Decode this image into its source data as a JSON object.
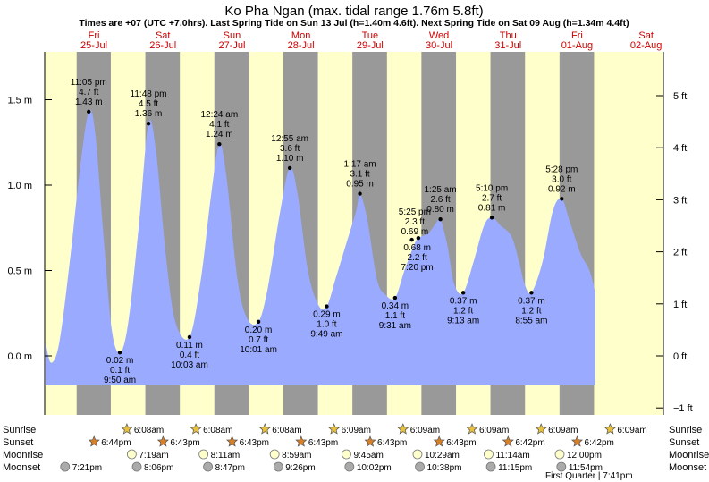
{
  "chart_data": {
    "type": "area",
    "title": "Ko Pha Ngan (max. tidal range 1.76m 5.8ft)",
    "subtitle": "Times are +07 (UTC +7.0hrs). Last Spring Tide on Sun 13 Jul (h=1.40m 4.6ft). Next Spring Tide on Sat 09 Aug (h=1.34m 4.4ft)",
    "days": [
      {
        "dow": "Fri",
        "date": "25-Jul"
      },
      {
        "dow": "Sat",
        "date": "26-Jul"
      },
      {
        "dow": "Sun",
        "date": "27-Jul"
      },
      {
        "dow": "Mon",
        "date": "28-Jul"
      },
      {
        "dow": "Tue",
        "date": "29-Jul"
      },
      {
        "dow": "Wed",
        "date": "30-Jul"
      },
      {
        "dow": "Thu",
        "date": "31-Jul"
      },
      {
        "dow": "Fri",
        "date": "01-Aug"
      },
      {
        "dow": "Sat",
        "date": "02-Aug"
      }
    ],
    "x_range_days": [
      0,
      8.6
    ],
    "y_range_m": [
      -0.18,
      1.78
    ],
    "left_axis": {
      "unit": "m",
      "ticks": [
        {
          "v": 0.0,
          "label": "0.0 m"
        },
        {
          "v": 0.5,
          "label": "0.5 m"
        },
        {
          "v": 1.0,
          "label": "1.0 m"
        },
        {
          "v": 1.5,
          "label": "1.5 m"
        }
      ]
    },
    "right_axis": {
      "unit": "ft",
      "ticks": [
        {
          "v": -1,
          "label": "−1 ft"
        },
        {
          "v": 0,
          "label": "0 ft"
        },
        {
          "v": 1,
          "label": "1 ft"
        },
        {
          "v": 2,
          "label": "2 ft"
        },
        {
          "v": 3,
          "label": "3 ft"
        },
        {
          "v": 4,
          "label": "4 ft"
        },
        {
          "v": 5,
          "label": "5 ft"
        }
      ]
    },
    "tide_series": [
      {
        "t": 0.0,
        "h": 0.08
      },
      {
        "t": 0.08,
        "h": -0.04
      },
      {
        "t": 0.2,
        "h": 0.08
      },
      {
        "t": 0.35,
        "h": 0.55
      },
      {
        "t": 0.5,
        "h": 1.1
      },
      {
        "t": 0.625,
        "h": 1.43
      },
      {
        "t": 0.72,
        "h": 1.3
      },
      {
        "t": 0.85,
        "h": 0.65
      },
      {
        "t": 0.96,
        "h": 0.15
      },
      {
        "t": 1.076,
        "h": 0.02
      },
      {
        "t": 1.2,
        "h": 0.2
      },
      {
        "t": 1.36,
        "h": 0.8
      },
      {
        "t": 1.49,
        "h": 1.36
      },
      {
        "t": 1.6,
        "h": 1.2
      },
      {
        "t": 1.74,
        "h": 0.6
      },
      {
        "t": 1.88,
        "h": 0.2
      },
      {
        "t": 2.085,
        "h": 0.11
      },
      {
        "t": 2.25,
        "h": 0.45
      },
      {
        "t": 2.4,
        "h": 0.95
      },
      {
        "t": 2.517,
        "h": 1.24
      },
      {
        "t": 2.62,
        "h": 1.05
      },
      {
        "t": 2.78,
        "h": 0.45
      },
      {
        "t": 2.92,
        "h": 0.22
      },
      {
        "t": 3.084,
        "h": 0.2
      },
      {
        "t": 3.22,
        "h": 0.4
      },
      {
        "t": 3.4,
        "h": 0.85
      },
      {
        "t": 3.538,
        "h": 1.1
      },
      {
        "t": 3.65,
        "h": 0.95
      },
      {
        "t": 3.8,
        "h": 0.5
      },
      {
        "t": 3.95,
        "h": 0.3
      },
      {
        "t": 4.073,
        "h": 0.29
      },
      {
        "t": 4.2,
        "h": 0.45
      },
      {
        "t": 4.35,
        "h": 0.65
      },
      {
        "t": 4.5,
        "h": 0.85
      },
      {
        "t": 4.554,
        "h": 0.95
      },
      {
        "t": 4.66,
        "h": 0.8
      },
      {
        "t": 4.8,
        "h": 0.45
      },
      {
        "t": 4.92,
        "h": 0.36
      },
      {
        "t": 5.063,
        "h": 0.34
      },
      {
        "t": 5.2,
        "h": 0.5
      },
      {
        "t": 5.35,
        "h": 0.66
      },
      {
        "t": 5.4,
        "h": 0.69
      },
      {
        "t": 5.45,
        "h": 0.7
      },
      {
        "t": 5.55,
        "h": 0.72
      },
      {
        "t": 5.66,
        "h": 0.78
      },
      {
        "t": 5.72,
        "h": 0.8
      },
      {
        "t": 5.82,
        "h": 0.65
      },
      {
        "t": 5.92,
        "h": 0.42
      },
      {
        "t": 6.051,
        "h": 0.37
      },
      {
        "t": 6.2,
        "h": 0.55
      },
      {
        "t": 6.35,
        "h": 0.76
      },
      {
        "t": 6.465,
        "h": 0.81
      },
      {
        "t": 6.6,
        "h": 0.76
      },
      {
        "t": 6.75,
        "h": 0.7
      },
      {
        "t": 6.86,
        "h": 0.55
      },
      {
        "t": 6.94,
        "h": 0.42
      },
      {
        "t": 7.039,
        "h": 0.37
      },
      {
        "t": 7.2,
        "h": 0.55
      },
      {
        "t": 7.35,
        "h": 0.85
      },
      {
        "t": 7.478,
        "h": 0.92
      },
      {
        "t": 7.6,
        "h": 0.78
      },
      {
        "t": 7.75,
        "h": 0.6
      },
      {
        "t": 7.88,
        "h": 0.5
      },
      {
        "t": 7.96,
        "h": 0.38
      }
    ],
    "extremes": [
      {
        "t": 0.625,
        "h": 1.43,
        "label": [
          "11:05 pm",
          "4.7 ft",
          "1.43 m"
        ],
        "pos": "above"
      },
      {
        "t": 1.076,
        "h": 0.02,
        "label": [
          "0.02 m",
          "0.1 ft",
          "9:50 am"
        ],
        "pos": "below"
      },
      {
        "t": 1.49,
        "h": 1.36,
        "label": [
          "11:48 pm",
          "4.5 ft",
          "1.36 m"
        ],
        "pos": "above"
      },
      {
        "t": 2.085,
        "h": 0.11,
        "label": [
          "0.11 m",
          "0.4 ft",
          "10:03 am"
        ],
        "pos": "below"
      },
      {
        "t": 2.517,
        "h": 1.24,
        "label": [
          "12:24 am",
          "4.1 ft",
          "1.24 m"
        ],
        "pos": "above"
      },
      {
        "t": 3.084,
        "h": 0.2,
        "label": [
          "0.20 m",
          "0.7 ft",
          "10:01 am"
        ],
        "pos": "below"
      },
      {
        "t": 3.538,
        "h": 1.1,
        "label": [
          "12:55 am",
          "3.6 ft",
          "1.10 m"
        ],
        "pos": "above"
      },
      {
        "t": 4.073,
        "h": 0.29,
        "label": [
          "0.29 m",
          "1.0 ft",
          "9:49 am"
        ],
        "pos": "below"
      },
      {
        "t": 4.554,
        "h": 0.95,
        "label": [
          "1:17 am",
          "3.1 ft",
          "0.95 m"
        ],
        "pos": "above"
      },
      {
        "t": 5.063,
        "h": 0.34,
        "label": [
          "0.34 m",
          "1.1 ft",
          "9:31 am"
        ],
        "pos": "below"
      },
      {
        "t": 5.4,
        "h": 0.69,
        "label": [
          "5:25 pm",
          "2.3 ft",
          "0.69 m"
        ],
        "pos": "aboveLeft"
      },
      {
        "t": 5.306,
        "h": 0.68,
        "label": [
          "0.68 m",
          "2.2 ft",
          "7:20 pm"
        ],
        "pos": "belowRight"
      },
      {
        "t": 5.72,
        "h": 0.8,
        "label": [
          "1:25 am",
          "2.6 ft",
          "0.80 m"
        ],
        "pos": "above"
      },
      {
        "t": 6.051,
        "h": 0.37,
        "label": [
          "0.37 m",
          "1.2 ft",
          "9:13 am"
        ],
        "pos": "below"
      },
      {
        "t": 6.465,
        "h": 0.81,
        "label": [
          "5:10 pm",
          "2.7 ft",
          "0.81 m"
        ],
        "pos": "above"
      },
      {
        "t": 7.039,
        "h": 0.37,
        "label": [
          "0.37 m",
          "1.2 ft",
          "8:55 am"
        ],
        "pos": "below"
      },
      {
        "t": 7.478,
        "h": 0.92,
        "label": [
          "5:28 pm",
          "3.0 ft",
          "0.92 m"
        ],
        "pos": "above"
      }
    ],
    "night_bands": [
      {
        "from": 0.45,
        "to": 0.945
      },
      {
        "from": 1.445,
        "to": 1.945
      },
      {
        "from": 2.445,
        "to": 2.945
      },
      {
        "from": 3.445,
        "to": 3.945
      },
      {
        "from": 4.445,
        "to": 4.946
      },
      {
        "from": 5.445,
        "to": 5.946
      },
      {
        "from": 6.445,
        "to": 6.946
      },
      {
        "from": 7.446,
        "to": 7.946
      }
    ],
    "colors": {
      "day": "#ffffcc",
      "night": "#999999",
      "tide": "#99aaff",
      "day_label": "#cc0000",
      "sunrise": "#e8c040",
      "sunset": "#d88028",
      "moon": "#ffffcc",
      "moonset": "#aaaaaa"
    }
  },
  "almanac": {
    "rows": [
      "Sunrise",
      "Sunset",
      "Moonrise",
      "Moonset"
    ],
    "sunrise": [
      {
        "t": 1.255,
        "time": "6:08am"
      },
      {
        "t": 2.255,
        "time": "6:08am"
      },
      {
        "t": 3.255,
        "time": "6:08am"
      },
      {
        "t": 4.256,
        "time": "6:09am"
      },
      {
        "t": 5.256,
        "time": "6:09am"
      },
      {
        "t": 6.256,
        "time": "6:09am"
      },
      {
        "t": 7.256,
        "time": "6:09am"
      },
      {
        "t": 8.256,
        "time": "6:09am"
      }
    ],
    "sunset": [
      {
        "t": 0.78,
        "time": "6:44pm"
      },
      {
        "t": 1.78,
        "time": "6:43pm"
      },
      {
        "t": 2.78,
        "time": "6:43pm"
      },
      {
        "t": 3.78,
        "time": "6:43pm"
      },
      {
        "t": 4.78,
        "time": "6:43pm"
      },
      {
        "t": 5.78,
        "time": "6:43pm"
      },
      {
        "t": 6.779,
        "time": "6:42pm"
      },
      {
        "t": 7.779,
        "time": "6:42pm"
      }
    ],
    "moonrise": [
      {
        "t": 1.3,
        "time": "7:19am"
      },
      {
        "t": 2.34,
        "time": "8:11am"
      },
      {
        "t": 3.37,
        "time": "8:59am"
      },
      {
        "t": 4.41,
        "time": "9:45am"
      },
      {
        "t": 5.44,
        "time": "10:29am"
      },
      {
        "t": 6.47,
        "time": "11:14am"
      },
      {
        "t": 7.5,
        "time": "12:00pm"
      }
    ],
    "moonset": [
      {
        "t": 0.8,
        "time": "7:21pm"
      },
      {
        "t": 1.84,
        "time": "8:06pm"
      },
      {
        "t": 2.87,
        "time": "8:47pm"
      },
      {
        "t": 3.89,
        "time": "9:26pm"
      },
      {
        "t": 4.92,
        "time": "10:02pm"
      },
      {
        "t": 5.94,
        "time": "10:38pm"
      },
      {
        "t": 6.97,
        "time": "11:15pm"
      },
      {
        "t": 7.99,
        "time": "11:54pm"
      }
    ],
    "moon_phase": "First Quarter | 7:41pm"
  }
}
